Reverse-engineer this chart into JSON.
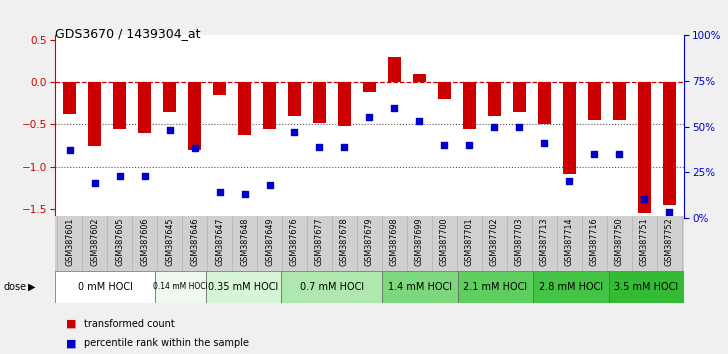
{
  "title": "GDS3670 / 1439304_at",
  "samples": [
    "GSM387601",
    "GSM387602",
    "GSM387605",
    "GSM387606",
    "GSM387645",
    "GSM387646",
    "GSM387647",
    "GSM387648",
    "GSM387649",
    "GSM387676",
    "GSM387677",
    "GSM387678",
    "GSM387679",
    "GSM387698",
    "GSM387699",
    "GSM387700",
    "GSM387701",
    "GSM387702",
    "GSM387703",
    "GSM387713",
    "GSM387714",
    "GSM387716",
    "GSM387750",
    "GSM387751",
    "GSM387752"
  ],
  "red_values": [
    -0.38,
    -0.75,
    -0.55,
    -0.6,
    -0.35,
    -0.8,
    -0.15,
    -0.62,
    -0.55,
    -0.4,
    -0.48,
    -0.52,
    -0.12,
    0.3,
    0.1,
    -0.2,
    -0.55,
    -0.4,
    -0.35,
    -0.5,
    -1.08,
    -0.45,
    -0.45,
    -1.55,
    -1.45
  ],
  "blue_values": [
    37,
    19,
    23,
    23,
    48,
    38,
    14,
    13,
    18,
    47,
    39,
    39,
    55,
    60,
    53,
    40,
    40,
    50,
    50,
    41,
    20,
    35,
    35,
    10,
    3
  ],
  "dose_groups": [
    {
      "label": "0 mM HOCl",
      "start": 0,
      "end": 4,
      "color": "#ffffff"
    },
    {
      "label": "0.14 mM HOCl",
      "start": 4,
      "end": 6,
      "color": "#edfaed"
    },
    {
      "label": "0.35 mM HOCl",
      "start": 6,
      "end": 9,
      "color": "#d6f5d6"
    },
    {
      "label": "0.7 mM HOCl",
      "start": 9,
      "end": 13,
      "color": "#aee8ae"
    },
    {
      "label": "1.4 mM HOCl",
      "start": 13,
      "end": 16,
      "color": "#7dd87d"
    },
    {
      "label": "2.1 mM HOCl",
      "start": 16,
      "end": 19,
      "color": "#5ecf5e"
    },
    {
      "label": "2.8 mM HOCl",
      "start": 19,
      "end": 22,
      "color": "#44c444"
    },
    {
      "label": "3.5 mM HOCl",
      "start": 22,
      "end": 25,
      "color": "#33bb33"
    }
  ],
  "ylim_left": [
    -1.6,
    0.55
  ],
  "ylim_right": [
    0,
    100
  ],
  "bar_color": "#cc0000",
  "dot_color": "#0000cc",
  "background_color": "#f0f0f0",
  "plot_bg": "#ffffff",
  "hline_color": "#cc0000",
  "dotted_color": "#555555",
  "xtick_bg": "#d0d0d0"
}
